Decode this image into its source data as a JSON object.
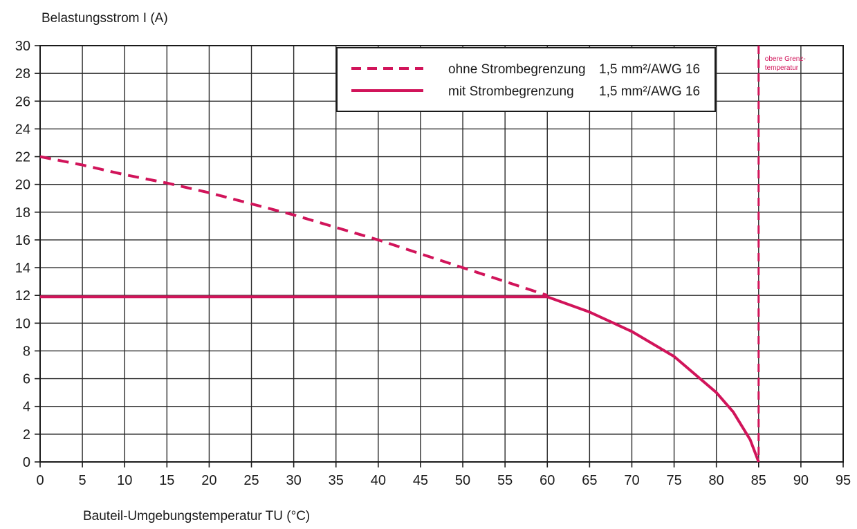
{
  "chart_data": {
    "type": "line",
    "ylabel": "Belastungsstrom I (A)",
    "xlabel": "Bauteil-Umgebungstemperatur TU (°C)",
    "xlim": [
      0,
      95
    ],
    "ylim": [
      0,
      30
    ],
    "x_ticks": [
      0,
      5,
      10,
      15,
      20,
      25,
      30,
      35,
      40,
      45,
      50,
      55,
      60,
      65,
      70,
      75,
      80,
      85,
      90,
      95
    ],
    "y_ticks": [
      0,
      2,
      4,
      6,
      8,
      10,
      12,
      14,
      16,
      18,
      20,
      22,
      24,
      26,
      28,
      30
    ],
    "grid": true,
    "legend_position": "top",
    "line_color": "#d1145a",
    "series": [
      {
        "name": "ohne Strombegrenzung",
        "spec": "1,5 mm²/AWG 16",
        "style": "dashed",
        "x": [
          0,
          5,
          10,
          15,
          20,
          25,
          30,
          35,
          40,
          45,
          50,
          55,
          60
        ],
        "y": [
          22.0,
          21.4,
          20.7,
          20.1,
          19.4,
          18.6,
          17.8,
          16.9,
          16.0,
          15.0,
          14.0,
          13.0,
          12.0
        ]
      },
      {
        "name": "mit Strombegrenzung",
        "spec": "1,5 mm²/AWG 16",
        "style": "solid",
        "x": [
          0,
          10,
          20,
          30,
          40,
          50,
          60,
          65,
          70,
          75,
          80,
          82,
          84,
          85
        ],
        "y": [
          11.9,
          11.9,
          11.9,
          11.9,
          11.9,
          11.9,
          11.9,
          10.8,
          9.4,
          7.6,
          5.0,
          3.6,
          1.6,
          0
        ]
      }
    ],
    "annotations": [
      {
        "label": "obere Grenz-temperatur",
        "x": 85,
        "style": "dashed vertical"
      }
    ]
  }
}
